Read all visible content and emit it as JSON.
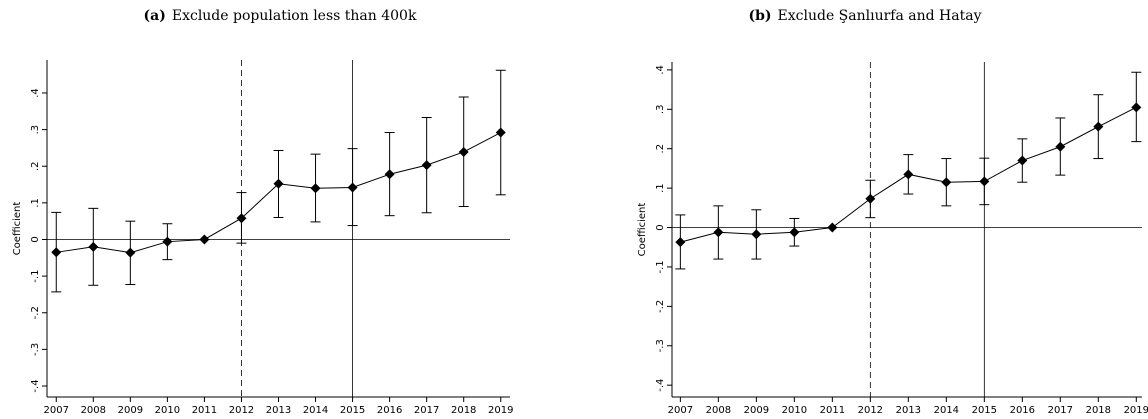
{
  "chart_data": [
    {
      "type": "line",
      "label": "(a)",
      "title": "Exclude population less than 400k",
      "ylabel": "Coefficient",
      "x": [
        2007,
        2008,
        2009,
        2010,
        2011,
        2012,
        2013,
        2014,
        2015,
        2016,
        2017,
        2018,
        2019
      ],
      "series": [
        {
          "color": "#000000",
          "values": [
            -0.035,
            -0.02,
            -0.036,
            -0.006,
            0,
            0.058,
            0.152,
            0.14,
            0.142,
            0.178,
            0.203,
            0.239,
            0.292
          ],
          "lower": [
            -0.143,
            -0.125,
            -0.123,
            -0.055,
            0,
            -0.01,
            0.06,
            0.048,
            0.038,
            0.065,
            0.073,
            0.09,
            0.122
          ],
          "upper": [
            0.074,
            0.085,
            0.05,
            0.043,
            0,
            0.128,
            0.243,
            0.233,
            0.248,
            0.292,
            0.333,
            0.389,
            0.462
          ]
        }
      ],
      "xlim": [
        2006.75,
        2019.25
      ],
      "xticks": [
        2007,
        2008,
        2009,
        2010,
        2011,
        2012,
        2013,
        2014,
        2015,
        2016,
        2017,
        2018,
        2019
      ],
      "ylim": [
        -0.43,
        0.49
      ],
      "yticks": [
        {
          "value": -0.4,
          "label": "-.4"
        },
        {
          "value": -0.3,
          "label": "-.3"
        },
        {
          "value": -0.2,
          "label": "-.2"
        },
        {
          "value": -0.1,
          "label": "-.1"
        },
        0,
        {
          "value": 0.1,
          "label": ".1"
        },
        {
          "value": 0.2,
          "label": ".2"
        },
        {
          "value": 0.3,
          "label": ".3"
        },
        {
          "value": 0.4,
          "label": ".4"
        }
      ],
      "hline": 0,
      "vlines": [
        {
          "x": 2012,
          "style": "dashed"
        },
        {
          "x": 2015,
          "style": "solid"
        }
      ]
    },
    {
      "type": "line",
      "label": "(b)",
      "title": "Exclude Şanlıurfa and Hatay",
      "ylabel": "Coefficient",
      "x": [
        2007,
        2008,
        2009,
        2010,
        2011,
        2012,
        2013,
        2014,
        2015,
        2016,
        2017,
        2018,
        2019
      ],
      "series": [
        {
          "color": "#000000",
          "values": [
            -0.037,
            -0.012,
            -0.017,
            -0.012,
            0,
            0.073,
            0.135,
            0.115,
            0.117,
            0.17,
            0.205,
            0.256,
            0.305
          ],
          "lower": [
            -0.105,
            -0.08,
            -0.08,
            -0.047,
            0,
            0.025,
            0.085,
            0.055,
            0.058,
            0.115,
            0.133,
            0.175,
            0.218
          ],
          "upper": [
            0.032,
            0.055,
            0.045,
            0.023,
            0,
            0.12,
            0.185,
            0.175,
            0.176,
            0.225,
            0.278,
            0.337,
            0.394
          ]
        }
      ],
      "xlim": [
        2006.78,
        2019.15
      ],
      "xticks": [
        2007,
        2008,
        2009,
        2010,
        2011,
        2012,
        2013,
        2014,
        2015,
        2016,
        2017,
        2018,
        2019
      ],
      "ylim": [
        -0.43,
        0.42
      ],
      "yticks": [
        {
          "value": -0.4,
          "label": "-.4"
        },
        {
          "value": -0.3,
          "label": "-.3"
        },
        {
          "value": -0.2,
          "label": "-.2"
        },
        {
          "value": -0.1,
          "label": "-.1"
        },
        0,
        {
          "value": 0.1,
          "label": ".1"
        },
        {
          "value": 0.2,
          "label": ".2"
        },
        {
          "value": 0.3,
          "label": ".3"
        },
        {
          "value": 0.4,
          "label": ".4"
        }
      ],
      "hline": 0,
      "vlines": [
        {
          "x": 2012,
          "style": "dashed"
        },
        {
          "x": 2015,
          "style": "solid"
        }
      ]
    }
  ]
}
